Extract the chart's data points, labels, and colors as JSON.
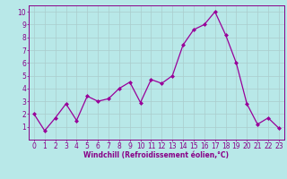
{
  "x": [
    0,
    1,
    2,
    3,
    4,
    5,
    6,
    7,
    8,
    9,
    10,
    11,
    12,
    13,
    14,
    15,
    16,
    17,
    18,
    19,
    20,
    21,
    22,
    23
  ],
  "y": [
    2,
    0.7,
    1.7,
    2.8,
    1.5,
    3.4,
    3.0,
    3.2,
    4.0,
    4.5,
    2.9,
    4.7,
    4.4,
    5.0,
    7.4,
    8.6,
    9.0,
    10.0,
    8.2,
    6.0,
    2.8,
    1.2,
    1.7,
    0.9
  ],
  "line_color": "#990099",
  "marker": "D",
  "marker_size": 2.0,
  "line_width": 0.9,
  "bg_color": "#b8e8e8",
  "grid_color": "#aacccc",
  "xlabel": "Windchill (Refroidissement éolien,°C)",
  "xlim": [
    -0.5,
    23.5
  ],
  "ylim": [
    0,
    10.5
  ],
  "xticks": [
    0,
    1,
    2,
    3,
    4,
    5,
    6,
    7,
    8,
    9,
    10,
    11,
    12,
    13,
    14,
    15,
    16,
    17,
    18,
    19,
    20,
    21,
    22,
    23
  ],
  "yticks": [
    1,
    2,
    3,
    4,
    5,
    6,
    7,
    8,
    9,
    10
  ],
  "tick_color": "#880088",
  "label_color": "#880088",
  "label_fontsize": 5.5,
  "tick_fontsize": 5.5,
  "spine_color": "#880088"
}
